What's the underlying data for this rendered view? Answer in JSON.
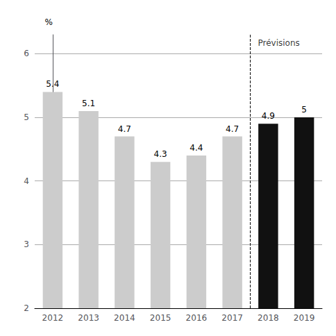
{
  "chart_data": {
    "type": "bar",
    "categories": [
      "2012",
      "2013",
      "2014",
      "2015",
      "2016",
      "2017",
      "2018",
      "2019"
    ],
    "values": [
      5.4,
      5.1,
      4.7,
      4.3,
      4.4,
      4.7,
      4.9,
      5.0
    ],
    "colors": [
      "#cccccc",
      "#cccccc",
      "#cccccc",
      "#cccccc",
      "#cccccc",
      "#cccccc",
      "#111111",
      "#111111"
    ],
    "ylabel": "%",
    "ylim": [
      2,
      6.3
    ],
    "yticks": [
      2,
      3,
      4,
      5,
      6
    ],
    "grid": true,
    "data_labels": true,
    "annotations": [
      {
        "text": "Prévisions",
        "x": "2018"
      }
    ]
  }
}
